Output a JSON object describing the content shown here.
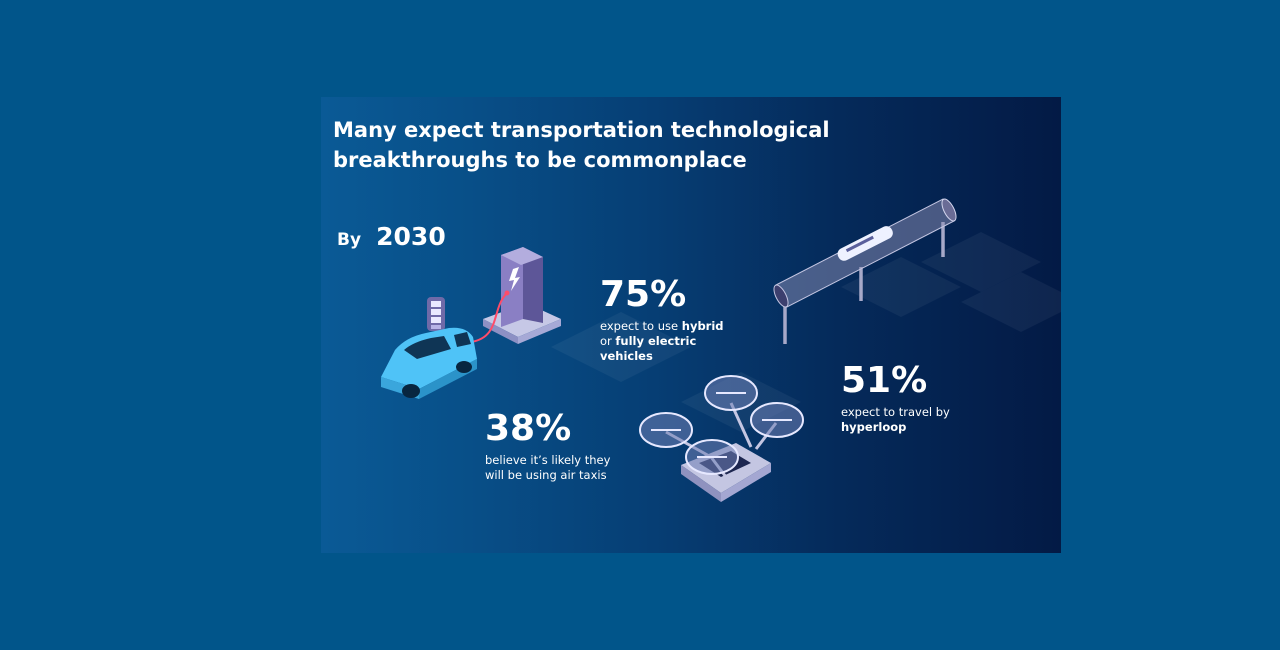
{
  "title_line1": "Many expect transportation technological",
  "title_line2": "breakthroughs to be commonplace",
  "by_word": "By",
  "by_year": "2030",
  "stats": {
    "electric": {
      "value": "75%",
      "line1_pre": "expect to use ",
      "line1_bold": "hybrid",
      "line2_pre": "or ",
      "line2_bold": "fully electric",
      "line3_bold": "vehicles"
    },
    "air_taxi": {
      "value": "38%",
      "line1": "believe it’s likely they",
      "line2": "will be using air taxis"
    },
    "hyperloop": {
      "value": "51%",
      "line1": "expect to travel by",
      "line2_bold": "hyperloop"
    }
  },
  "icons": {
    "car": "electric-car-icon",
    "charger": "charging-station-icon",
    "battery": "battery-icon",
    "drone": "air-taxi-icon",
    "hyperloop": "hyperloop-tube-icon"
  },
  "colors": {
    "page_background": "#01558a",
    "panel_left": "#0a5a96",
    "panel_right": "#031a45",
    "car_body": "#4fc3f7",
    "charger_accent": "#6f6aa8",
    "text": "#ffffff"
  }
}
